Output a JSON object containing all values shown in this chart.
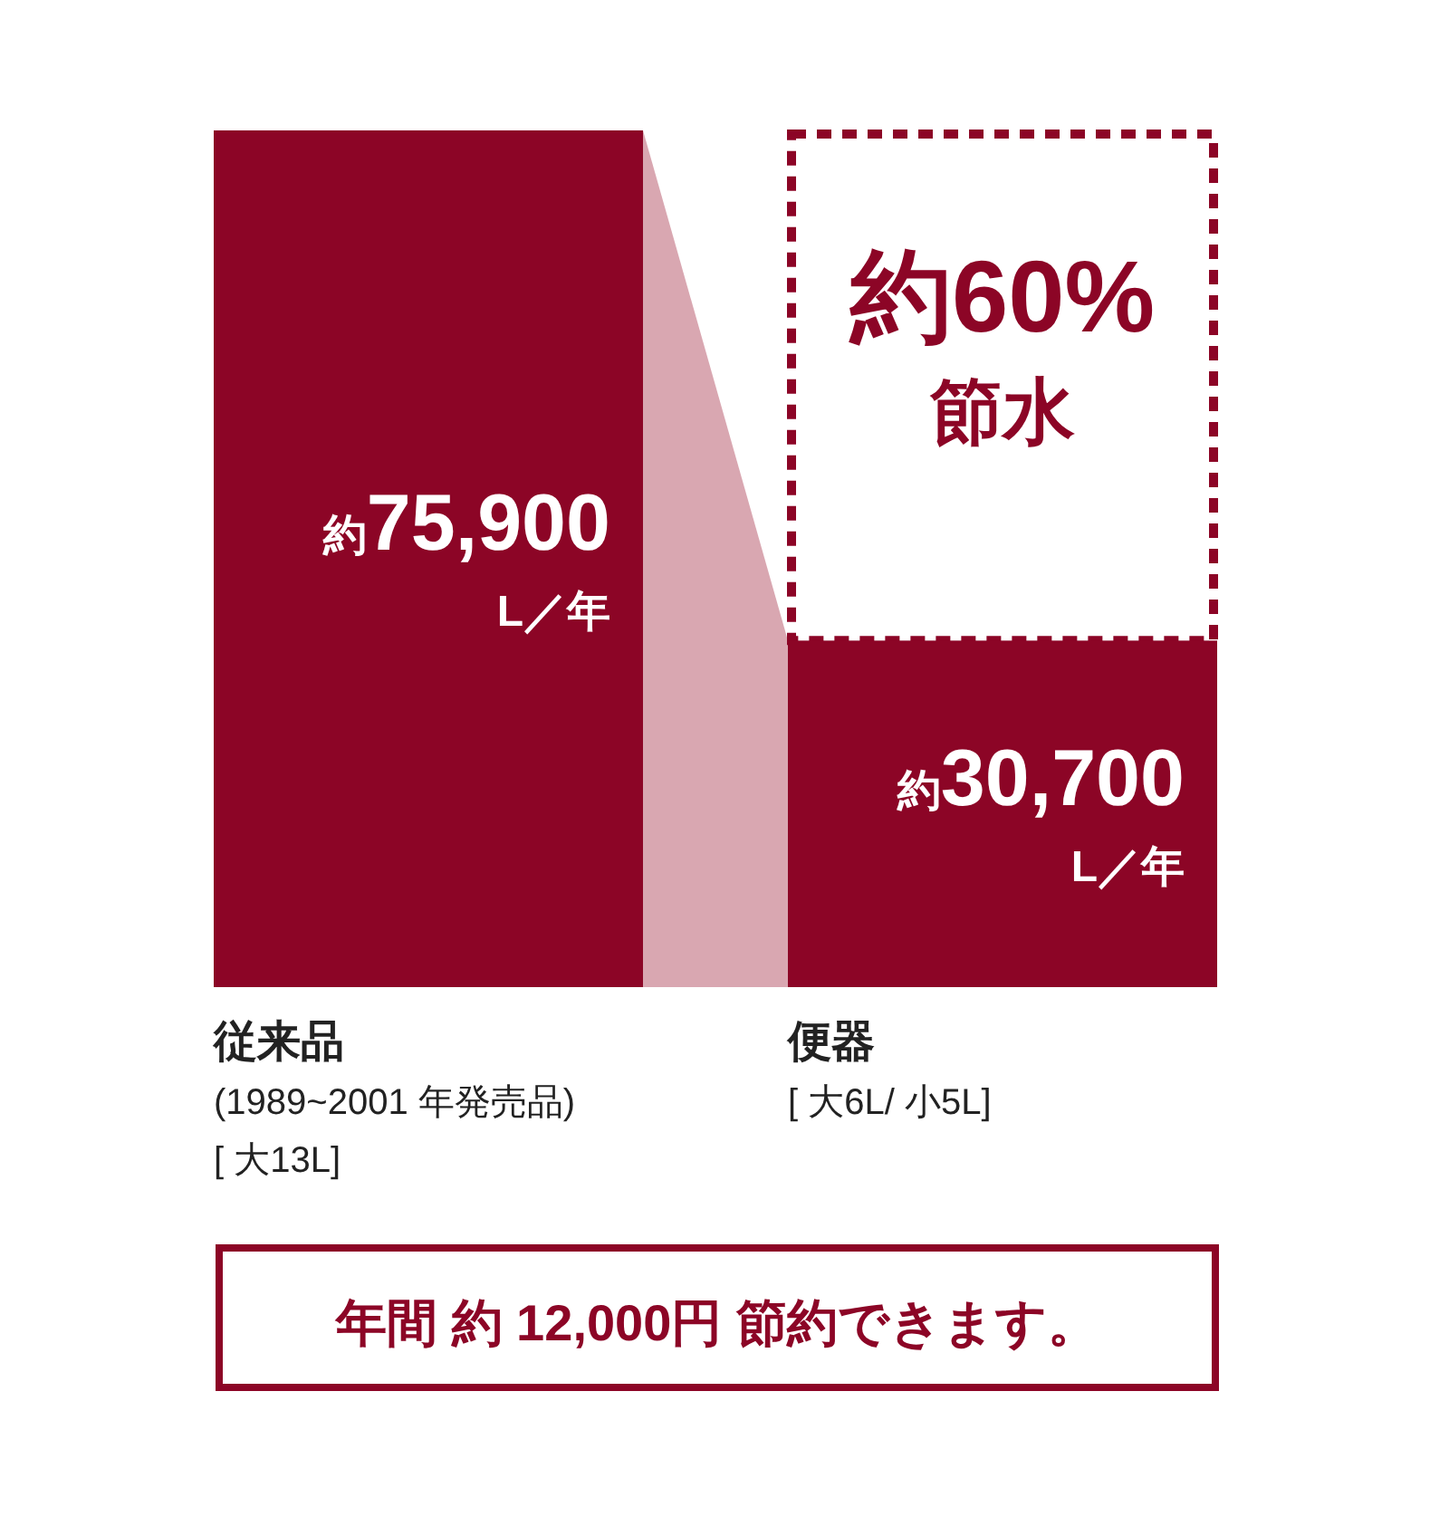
{
  "chart_data": {
    "type": "bar",
    "categories": [
      "従来品\n(1989~2001 年発売品)\n[ 大13L]",
      "便器\n[ 大6L/ 小5L]"
    ],
    "values": [
      75900,
      30700
    ],
    "color": "#8c0526",
    "value_labels": [
      "約75,900\nL／年",
      "約30,700\nL／年"
    ],
    "annotations": [
      "約60%\n節水",
      "年間 約 12,000円 節約できます。"
    ]
  }
}
